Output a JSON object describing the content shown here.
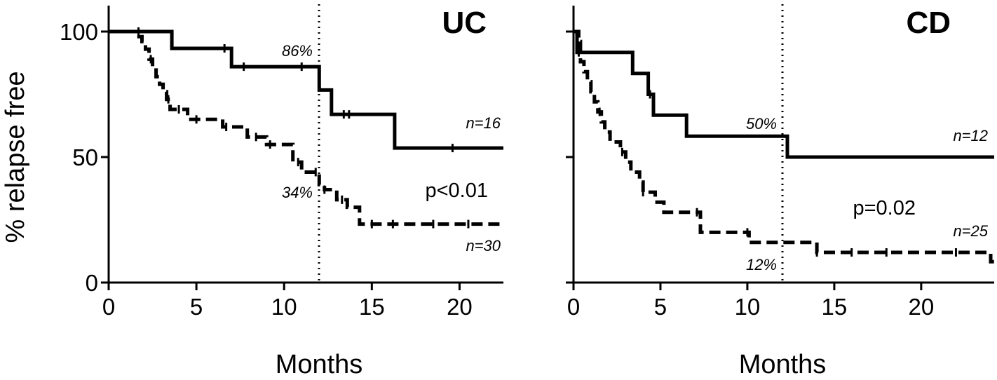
{
  "y_axis_title": "% relapse free",
  "chart_data": [
    {
      "type": "line",
      "title": "UC",
      "xlabel": "Months",
      "ylabel": "% relapse free",
      "xlim": [
        0,
        22.5
      ],
      "ylim": [
        0,
        110
      ],
      "x_ticks": [
        0,
        5,
        10,
        15,
        20
      ],
      "x_tick_labels": [
        "0",
        "5",
        "10",
        "15",
        "20"
      ],
      "y_ticks": [
        0,
        50,
        100
      ],
      "y_tick_labels": [
        "0",
        "50",
        "100"
      ],
      "reference_x": 12,
      "series": [
        {
          "style": "solid",
          "steps": [
            [
              0,
              100
            ],
            [
              3.6,
              93.3
            ],
            [
              7.0,
              86
            ],
            [
              12.0,
              76.7
            ],
            [
              12.7,
              67
            ],
            [
              16.3,
              53.6
            ],
            [
              22.5,
              53.6
            ]
          ],
          "censor_x": [
            1.7,
            6.6,
            7.7,
            11.0,
            13.4,
            13.7,
            19.6
          ]
        },
        {
          "style": "dashed",
          "steps": [
            [
              0,
              100
            ],
            [
              1.6,
              98
            ],
            [
              1.9,
              96
            ],
            [
              2.1,
              93
            ],
            [
              2.3,
              89
            ],
            [
              2.5,
              86
            ],
            [
              2.7,
              82
            ],
            [
              2.9,
              79
            ],
            [
              3.1,
              76
            ],
            [
              3.3,
              73
            ],
            [
              3.5,
              69
            ],
            [
              4.5,
              65
            ],
            [
              6.5,
              62
            ],
            [
              7.9,
              58
            ],
            [
              9.0,
              55
            ],
            [
              10.5,
              48
            ],
            [
              11.0,
              44
            ],
            [
              12.0,
              39
            ],
            [
              12.3,
              37
            ],
            [
              13.0,
              33
            ],
            [
              13.6,
              30
            ],
            [
              14.3,
              23.3
            ],
            [
              22.5,
              23.3
            ]
          ],
          "censor_x": [
            2.4,
            3.4,
            4.0,
            5.0,
            6.7,
            8.4,
            9.2,
            10.8,
            11.8,
            12.3,
            13.3,
            15.0,
            16.2,
            18.5,
            20.5
          ]
        }
      ],
      "annotations": {
        "upper_percent": "86%",
        "lower_percent": "34%",
        "upper_n": "n=16",
        "lower_n": "n=30",
        "p_value": "p<0.01"
      }
    },
    {
      "type": "line",
      "title": "CD",
      "xlabel": "Months",
      "ylabel": "% relapse free",
      "xlim": [
        0,
        24.2
      ],
      "ylim": [
        0,
        110
      ],
      "x_ticks": [
        0,
        5,
        10,
        15,
        20
      ],
      "x_tick_labels": [
        "0",
        "5",
        "10",
        "15",
        "20"
      ],
      "y_ticks": [
        0,
        50,
        100
      ],
      "reference_x": 12,
      "series": [
        {
          "style": "solid",
          "steps": [
            [
              0,
              100
            ],
            [
              0.2,
              91.7
            ],
            [
              3.4,
              83.3
            ],
            [
              4.3,
              75
            ],
            [
              4.6,
              66.7
            ],
            [
              6.5,
              58.3
            ],
            [
              12.3,
              50
            ],
            [
              24.2,
              50
            ]
          ],
          "censor_x": [
            0.3,
            4.4
          ]
        },
        {
          "style": "dashed",
          "steps": [
            [
              0,
              100
            ],
            [
              0.3,
              96
            ],
            [
              0.4,
              88
            ],
            [
              0.6,
              84
            ],
            [
              0.8,
              80
            ],
            [
              1.0,
              76
            ],
            [
              1.2,
              72
            ],
            [
              1.4,
              68
            ],
            [
              1.6,
              64
            ],
            [
              1.8,
              60
            ],
            [
              2.1,
              56
            ],
            [
              2.7,
              52
            ],
            [
              3.0,
              48
            ],
            [
              3.3,
              44
            ],
            [
              3.8,
              40
            ],
            [
              4.0,
              36
            ],
            [
              4.7,
              32
            ],
            [
              5.2,
              28
            ],
            [
              7.3,
              20
            ],
            [
              10.1,
              16
            ],
            [
              14.0,
              12
            ],
            [
              24.0,
              8.3
            ],
            [
              24.2,
              8.3
            ]
          ],
          "censor_x": [
            1.5,
            2.8,
            4.0,
            7.1,
            10.0,
            14.0,
            16.0,
            18.0,
            22.0
          ]
        }
      ],
      "annotations": {
        "upper_percent": "50%",
        "lower_percent": "12%",
        "upper_n": "n=12",
        "lower_n": "n=25",
        "p_value": "p=0.02"
      }
    }
  ]
}
